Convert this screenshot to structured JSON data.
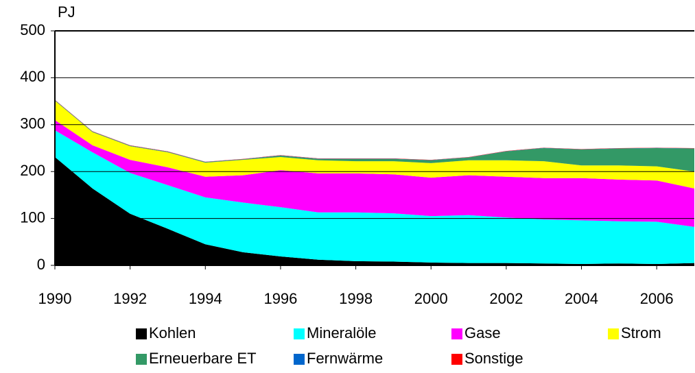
{
  "chart_data": {
    "type": "stacked_area",
    "y_label": "PJ",
    "x": [
      1990,
      1991,
      1992,
      1993,
      1994,
      1995,
      1996,
      1997,
      1998,
      1999,
      2000,
      2001,
      2002,
      2003,
      2004,
      2005,
      2006,
      2007
    ],
    "xlim": [
      1990,
      2007
    ],
    "xticks": [
      1990,
      1992,
      1994,
      1996,
      1998,
      2000,
      2002,
      2004,
      2006
    ],
    "ylim": [
      0,
      500
    ],
    "yticks": [
      0,
      100,
      200,
      300,
      400,
      500
    ],
    "grid": true,
    "legend": "bottom",
    "series": [
      {
        "name": "Kohlen",
        "color": "#000000",
        "values": [
          231,
          164,
          110,
          78,
          45,
          28,
          19,
          12,
          9,
          8,
          6,
          5,
          5,
          4,
          3,
          4,
          3,
          5
        ]
      },
      {
        "name": "Mineralöle",
        "color": "#00ffff",
        "values": [
          57,
          77,
          87,
          93,
          100,
          106,
          105,
          101,
          104,
          103,
          99,
          102,
          97,
          94,
          93,
          90,
          90,
          77
        ]
      },
      {
        "name": "Gase",
        "color": "#ff00ff",
        "values": [
          22,
          15,
          28,
          38,
          44,
          58,
          79,
          83,
          83,
          83,
          82,
          85,
          87,
          88,
          90,
          89,
          88,
          82
        ]
      },
      {
        "name": "Strom",
        "color": "#ffff00",
        "values": [
          41,
          28,
          29,
          32,
          30,
          33,
          28,
          28,
          26,
          28,
          31,
          32,
          35,
          36,
          27,
          30,
          30,
          36
        ]
      },
      {
        "name": "Erneuerbare ET",
        "color": "#339966",
        "values": [
          1,
          1,
          1,
          1,
          1,
          1,
          3,
          3,
          5,
          5,
          6,
          6,
          19,
          28,
          34,
          36,
          39,
          49
        ]
      },
      {
        "name": "Fernwärme",
        "color": "#0066cc",
        "values": [
          0.5,
          0.5,
          0.5,
          0.5,
          0.5,
          0.5,
          0.5,
          0.5,
          0.5,
          0.5,
          0.5,
          0.5,
          0.5,
          0.5,
          0.5,
          0.5,
          0.5,
          0.5
        ]
      },
      {
        "name": "Sonstige",
        "color": "#ff0000",
        "values": [
          0.5,
          0.5,
          0.5,
          0.5,
          0.5,
          0.5,
          0.5,
          0.5,
          0.5,
          0.5,
          0.5,
          0.5,
          0.5,
          0.5,
          0.5,
          0.5,
          0.5,
          0.5
        ]
      }
    ]
  }
}
